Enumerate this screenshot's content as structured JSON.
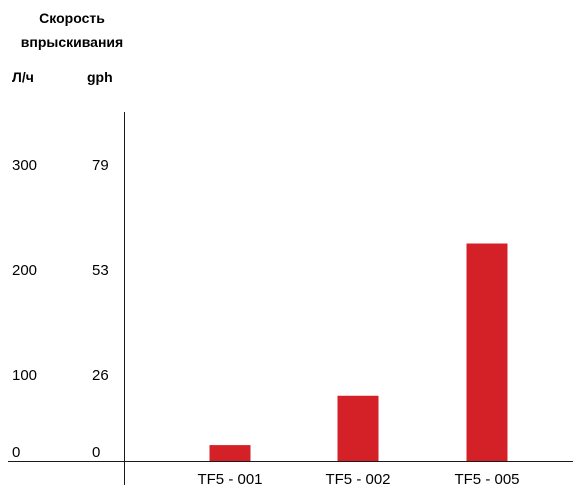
{
  "chart_data": {
    "type": "bar",
    "title_lines": [
      "Скорость",
      "впрыскивания"
    ],
    "y_units": [
      "Л/ч",
      "gph"
    ],
    "y_ticks": [
      {
        "primary": "0",
        "secondary": "0",
        "value": 0
      },
      {
        "primary": "100",
        "secondary": "26",
        "value": 100
      },
      {
        "primary": "200",
        "secondary": "53",
        "value": 200
      },
      {
        "primary": "300",
        "secondary": "79",
        "value": 300
      }
    ],
    "categories": [
      "TF5 - 001",
      "TF5 - 002",
      "TF5 - 005"
    ],
    "values": [
      38,
      85,
      230
    ],
    "ylim": [
      0,
      310
    ],
    "grid": false,
    "colors": {
      "bar": "#d42027",
      "axis": "#1a1a1a"
    }
  }
}
